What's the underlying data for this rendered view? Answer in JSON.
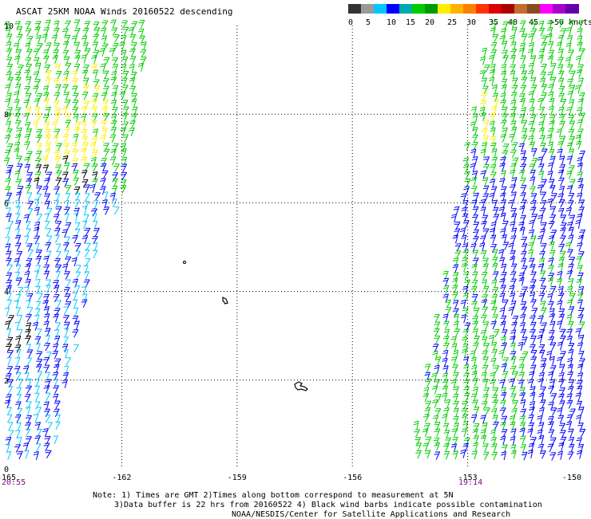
{
  "title": "ASCAT 25KM NOAA Winds 20160522 descending",
  "legend": {
    "colors": [
      "#333333",
      "#9a9a9a",
      "#00c8ff",
      "#0000ff",
      "#00aaaa",
      "#00cc00",
      "#009900",
      "#ffee00",
      "#ffb300",
      "#ff8000",
      "#ff3300",
      "#dd0000",
      "#aa0000",
      "#c46b2e",
      "#8a4a20",
      "#ff00ff",
      "#aa00cc",
      "#6600aa"
    ],
    "labels": [
      "0",
      "5",
      "10",
      "15",
      "20",
      "25",
      "30",
      "35",
      "40",
      "45",
      ">50 knots"
    ]
  },
  "chart_data": {
    "type": "scatter",
    "description_type": "wind barb swath map",
    "x_ticks": [
      "-165",
      "-162",
      "-159",
      "-156",
      "-153",
      "-150"
    ],
    "y_ticks": [
      "10",
      "8",
      "6",
      "4",
      "2",
      "0"
    ],
    "xlim": [
      -165,
      -150
    ],
    "ylim": [
      0,
      10
    ],
    "grid": true,
    "left_swath_time": "20:55",
    "right_swath_time": "19:14",
    "series": [
      {
        "name": "15-20 knots",
        "color": "#00cc00"
      },
      {
        "name": "20-25 knots",
        "color": "#ffee00"
      },
      {
        "name": "10-15 knots",
        "color": "#0000ff"
      },
      {
        "name": "5-10 knots",
        "color": "#00c8ff"
      },
      {
        "name": "possible contamination",
        "color": "#000000"
      }
    ]
  },
  "notes": {
    "line1": "Note: 1) Times are GMT 2)Times along bottom correspond to measurement at 5N",
    "line2": "3)Data buffer is 22 hrs from 20160522 4) Black wind barbs indicate possible contamination",
    "line3": "NOAA/NESDIS/Center for Satellite Applications and Research"
  }
}
